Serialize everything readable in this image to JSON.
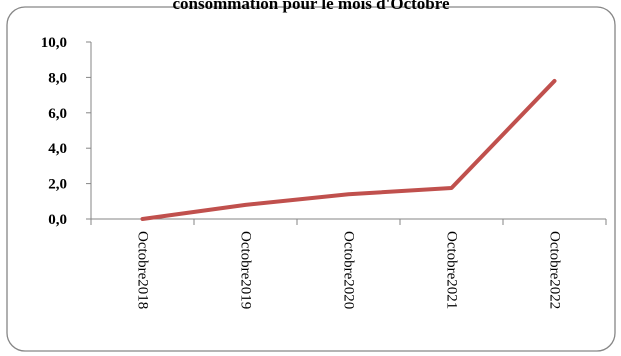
{
  "chart_data": {
    "type": "line",
    "title": "consommation pour le mois d'Octobre",
    "categories": [
      "Octobre2018",
      "Octobre2019",
      "Octobre2020",
      "Octobre2021",
      "Octobre2022"
    ],
    "series": [
      {
        "values": [
          0.0,
          0.8,
          1.4,
          1.75,
          7.8
        ]
      }
    ],
    "ylim": [
      0,
      10
    ],
    "yticks": [
      "0,0",
      "2,0",
      "4,0",
      "6,0",
      "8,0",
      "10,0"
    ],
    "grid": false,
    "legend": "none",
    "colors": {
      "line": "#c0504d",
      "border": "#868686",
      "axis": "#868686"
    }
  }
}
